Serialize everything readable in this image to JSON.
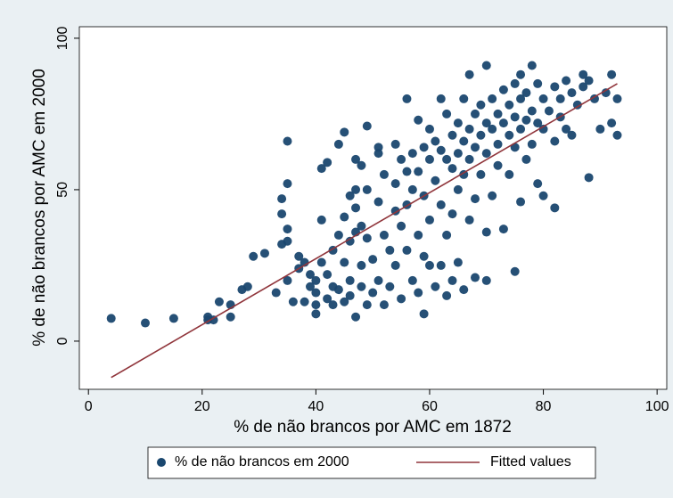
{
  "chart_data": {
    "type": "scatter",
    "x_label": "% de não brancos por AMC em 1872",
    "y_label": "% de não brancos por AMC em 2000",
    "xlim": [
      -1.6,
      101.7
    ],
    "ylim": [
      -15.9,
      103.8
    ],
    "xticks": [
      0,
      20,
      40,
      60,
      80,
      100
    ],
    "yticks": [
      0,
      50,
      100
    ],
    "grid": false,
    "legend_position": "bottom",
    "series": [
      {
        "name": "% de não brancos em 2000",
        "type": "scatter",
        "color": "#1a476f",
        "x": [
          4,
          10,
          15,
          21,
          21,
          22,
          23,
          25,
          25,
          27,
          28,
          29,
          31,
          33,
          34,
          34,
          34,
          35,
          35,
          35,
          35,
          35,
          36,
          37,
          37,
          38,
          38,
          39,
          39,
          40,
          40,
          40,
          40,
          41,
          41,
          41,
          42,
          42,
          42,
          43,
          43,
          43,
          44,
          44,
          44,
          45,
          45,
          45,
          45,
          46,
          46,
          46,
          46,
          47,
          47,
          47,
          47,
          47,
          48,
          48,
          48,
          48,
          49,
          49,
          49,
          49,
          50,
          50,
          51,
          51,
          51,
          51,
          52,
          52,
          52,
          53,
          53,
          54,
          54,
          54,
          54,
          55,
          55,
          55,
          56,
          56,
          56,
          56,
          57,
          57,
          57,
          58,
          58,
          58,
          58,
          59,
          59,
          59,
          59,
          60,
          60,
          60,
          60,
          61,
          61,
          61,
          62,
          62,
          62,
          62,
          63,
          63,
          63,
          63,
          64,
          64,
          64,
          64,
          65,
          65,
          65,
          65,
          66,
          66,
          66,
          66,
          67,
          67,
          67,
          67,
          68,
          68,
          68,
          68,
          69,
          69,
          69,
          70,
          70,
          70,
          70,
          70,
          71,
          71,
          71,
          72,
          72,
          72,
          73,
          73,
          73,
          74,
          74,
          74,
          75,
          75,
          75,
          75,
          76,
          76,
          76,
          76,
          77,
          77,
          77,
          78,
          78,
          78,
          79,
          79,
          79,
          80,
          80,
          80,
          81,
          82,
          82,
          82,
          83,
          83,
          84,
          84,
          85,
          85,
          86,
          87,
          87,
          88,
          88,
          89,
          90,
          91,
          92,
          92,
          93,
          93
        ],
        "values": [
          7.5,
          6,
          7.5,
          8,
          7,
          7,
          13,
          8,
          12,
          17,
          18,
          28,
          29,
          16,
          32,
          42,
          47,
          66,
          52,
          37,
          33,
          20,
          13,
          24,
          28,
          13,
          26,
          22,
          18,
          12,
          9,
          16,
          20,
          57,
          40,
          26,
          59,
          14,
          22,
          18,
          12,
          30,
          65,
          35,
          17,
          69,
          41,
          26,
          13,
          48,
          33,
          20,
          15,
          60,
          50,
          44,
          36,
          8,
          58,
          38,
          25,
          18,
          71,
          50,
          34,
          12,
          27,
          16,
          64,
          62,
          46,
          20,
          55,
          35,
          12,
          30,
          18,
          65,
          52,
          43,
          25,
          60,
          38,
          14,
          80,
          56,
          45,
          30,
          62,
          50,
          20,
          73,
          56,
          35,
          16,
          64,
          48,
          28,
          9,
          70,
          60,
          40,
          25,
          66,
          53,
          18,
          80,
          63,
          45,
          25,
          75,
          60,
          35,
          15,
          68,
          57,
          42,
          20,
          72,
          62,
          50,
          26,
          80,
          66,
          55,
          17,
          88,
          70,
          60,
          40,
          75,
          64,
          47,
          21,
          78,
          68,
          55,
          91,
          72,
          62,
          36,
          20,
          80,
          70,
          48,
          75,
          65,
          58,
          83,
          72,
          37,
          78,
          68,
          55,
          85,
          74,
          64,
          23,
          88,
          80,
          70,
          46,
          82,
          73,
          60,
          91,
          76,
          65,
          85,
          72,
          52,
          80,
          70,
          48,
          76,
          84,
          66,
          44,
          80,
          74,
          86,
          70,
          82,
          68,
          78,
          88,
          84,
          86,
          54,
          80,
          70,
          82,
          88,
          72,
          80,
          68
        ]
      },
      {
        "name": "Fitted values",
        "type": "line",
        "color": "#90353b",
        "x": [
          4,
          93
        ],
        "values": [
          -12,
          85
        ]
      }
    ]
  }
}
